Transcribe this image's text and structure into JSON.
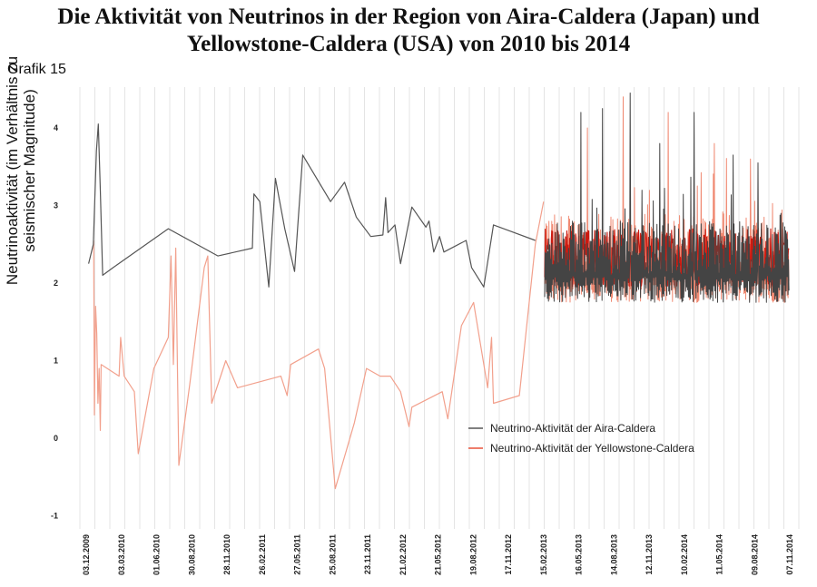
{
  "chart_data": {
    "type": "line",
    "title_line1": "Die Aktivität von Neutrinos in der Region von Aira-Caldera (Japan) und",
    "title_line2": "Yellowstone-Caldera (USA) von 2010 bis 2014",
    "subtitle": "Grafik 15",
    "ylabel_line1": "Neutrinoaktivität (im Verhältnis zu",
    "ylabel_line2": "seismischer Magnitude)",
    "ylim": [
      -1,
      4.5
    ],
    "yticks": [
      -1,
      0,
      1,
      2,
      3,
      4
    ],
    "grid": "vertical",
    "legend_position": "lower-right",
    "x_ticks": [
      "03.12.2009",
      "03.03.2010",
      "01.06.2010",
      "30.08.2010",
      "28.11.2010",
      "26.02.2011",
      "27.05.2011",
      "25.08.2011",
      "23.11.2011",
      "21.02.2012",
      "21.05.2012",
      "19.08.2012",
      "17.11.2012",
      "15.02.2013",
      "16.05.2013",
      "14.08.2013",
      "12.11.2013",
      "10.02.2014",
      "11.05.2014",
      "09.08.2014",
      "07.11.2014"
    ],
    "series": [
      {
        "name": "Neutrino-Aktivität der Aira-Caldera",
        "color": "#555555",
        "points": [
          [
            "2009-12-09",
            2.25
          ],
          [
            "2009-12-21",
            2.5
          ],
          [
            "2009-12-29",
            3.7
          ],
          [
            "2010-01-03",
            4.05
          ],
          [
            "2010-01-08",
            3.2
          ],
          [
            "2010-01-14",
            2.1
          ],
          [
            "2010-02-10",
            2.2
          ],
          [
            "2010-07-01",
            2.7
          ],
          [
            "2010-11-05",
            2.35
          ],
          [
            "2011-02-01",
            2.45
          ],
          [
            "2011-02-05",
            3.15
          ],
          [
            "2011-02-20",
            3.05
          ],
          [
            "2011-03-15",
            1.95
          ],
          [
            "2011-04-01",
            3.35
          ],
          [
            "2011-04-25",
            2.7
          ],
          [
            "2011-05-20",
            2.15
          ],
          [
            "2011-06-10",
            3.65
          ],
          [
            "2011-08-20",
            3.05
          ],
          [
            "2011-09-25",
            3.3
          ],
          [
            "2011-10-25",
            2.85
          ],
          [
            "2011-12-01",
            2.6
          ],
          [
            "2012-01-01",
            2.62
          ],
          [
            "2012-01-08",
            3.1
          ],
          [
            "2012-01-14",
            2.65
          ],
          [
            "2012-02-01",
            2.75
          ],
          [
            "2012-02-15",
            2.25
          ],
          [
            "2012-03-15",
            2.98
          ],
          [
            "2012-04-20",
            2.72
          ],
          [
            "2012-04-28",
            2.8
          ],
          [
            "2012-05-10",
            2.4
          ],
          [
            "2012-05-25",
            2.6
          ],
          [
            "2012-06-05",
            2.4
          ],
          [
            "2012-08-01",
            2.55
          ],
          [
            "2012-08-15",
            2.2
          ],
          [
            "2012-09-15",
            1.95
          ],
          [
            "2012-10-10",
            2.75
          ],
          [
            "2013-01-25",
            2.55
          ]
        ]
      },
      {
        "name": "Neutrino-Aktivität der Yellowstone-Caldera",
        "color": "#e8533a",
        "points": [
          [
            "2009-12-22",
            2.55
          ],
          [
            "2009-12-24",
            0.3
          ],
          [
            "2009-12-27",
            1.7
          ],
          [
            "2009-12-30",
            1.35
          ],
          [
            "2010-01-02",
            0.45
          ],
          [
            "2010-01-05",
            0.9
          ],
          [
            "2010-01-08",
            0.1
          ],
          [
            "2010-01-10",
            0.95
          ],
          [
            "2010-02-25",
            0.8
          ],
          [
            "2010-03-01",
            1.3
          ],
          [
            "2010-03-10",
            0.8
          ],
          [
            "2010-04-05",
            0.6
          ],
          [
            "2010-04-15",
            -0.2
          ],
          [
            "2010-05-25",
            0.9
          ],
          [
            "2010-07-01",
            1.3
          ],
          [
            "2010-07-08",
            2.35
          ],
          [
            "2010-07-14",
            0.95
          ],
          [
            "2010-07-20",
            2.45
          ],
          [
            "2010-07-28",
            -0.35
          ],
          [
            "2010-08-25",
            0.7
          ],
          [
            "2010-10-01",
            2.2
          ],
          [
            "2010-10-10",
            2.35
          ],
          [
            "2010-10-20",
            0.45
          ],
          [
            "2010-11-25",
            1.0
          ],
          [
            "2010-12-25",
            0.65
          ],
          [
            "2011-04-15",
            0.8
          ],
          [
            "2011-05-01",
            0.55
          ],
          [
            "2011-05-10",
            0.95
          ],
          [
            "2011-07-20",
            1.15
          ],
          [
            "2011-08-05",
            0.9
          ],
          [
            "2011-09-01",
            -0.65
          ],
          [
            "2011-10-20",
            0.2
          ],
          [
            "2011-11-20",
            0.9
          ],
          [
            "2011-12-25",
            0.8
          ],
          [
            "2012-01-20",
            0.8
          ],
          [
            "2012-02-15",
            0.6
          ],
          [
            "2012-03-08",
            0.15
          ],
          [
            "2012-03-15",
            0.4
          ],
          [
            "2012-06-01",
            0.6
          ],
          [
            "2012-06-15",
            0.25
          ],
          [
            "2012-07-20",
            1.45
          ],
          [
            "2012-08-20",
            1.75
          ],
          [
            "2012-09-25",
            0.65
          ],
          [
            "2012-10-05",
            1.3
          ],
          [
            "2012-10-10",
            0.45
          ],
          [
            "2012-12-15",
            0.55
          ],
          [
            "2013-01-25",
            2.5
          ],
          [
            "2013-02-15",
            3.05
          ]
        ]
      }
    ],
    "dense_region": {
      "start": "2013-02-18",
      "end": "2014-11-05",
      "aira_peaks": [
        4.2,
        4.25,
        4.45,
        3.8,
        4.2,
        3.65,
        3.55
      ],
      "yellowstone_peaks": [
        4.0,
        4.4,
        4.2,
        3.8,
        3.6
      ],
      "range_low": 1.75,
      "range_typical_high": 2.9
    }
  },
  "legend": {
    "aira_label": "Neutrino-Aktivität der Aira-Caldera",
    "yellowstone_label": "Neutrino-Aktivität der Yellowstone-Caldera"
  }
}
